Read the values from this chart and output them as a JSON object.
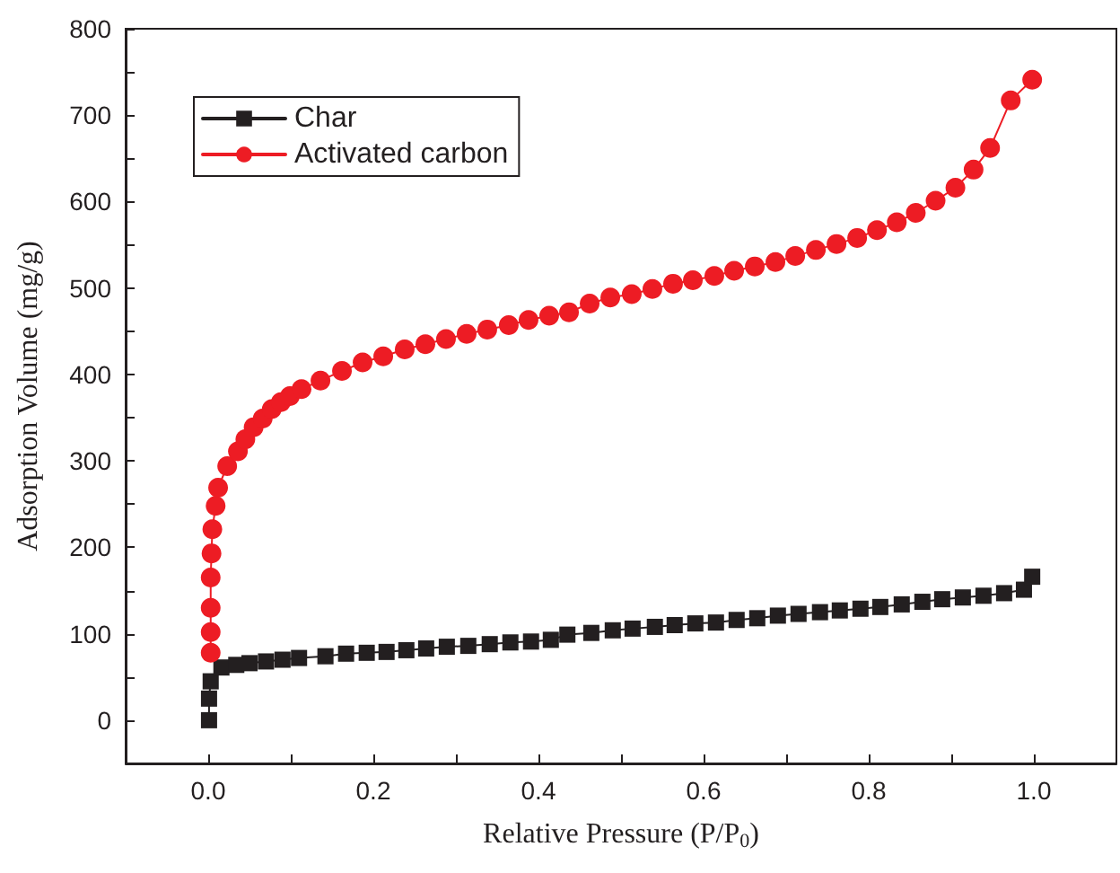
{
  "chart_data": {
    "type": "line",
    "xlabel": "Relative Pressure (P/P$_{0}$)",
    "ylabel": "Adsorption Volume (mg/g)",
    "xlim": [
      -0.1,
      1.1
    ],
    "ylim": [
      -50,
      800
    ],
    "xticks": [
      {
        "value": 0,
        "label": "0.0"
      },
      {
        "value": 0.1,
        "label": null
      },
      {
        "value": 0.2,
        "label": "0.2"
      },
      {
        "value": 0.3,
        "label": null
      },
      {
        "value": 0.4,
        "label": "0.4"
      },
      {
        "value": 0.5,
        "label": null
      },
      {
        "value": 0.6,
        "label": "0.6"
      },
      {
        "value": 0.7,
        "label": null
      },
      {
        "value": 0.8,
        "label": "0.8"
      },
      {
        "value": 0.9,
        "label": null
      },
      {
        "value": 1,
        "label": "1.0"
      }
    ],
    "yticks": [
      0,
      {
        "value": 50,
        "label": null
      },
      100,
      {
        "value": 150,
        "label": null
      },
      200,
      {
        "value": 250,
        "label": null
      },
      300,
      {
        "value": 350,
        "label": null
      },
      400,
      {
        "value": 450,
        "label": null
      },
      500,
      {
        "value": 550,
        "label": null
      },
      600,
      {
        "value": 650,
        "label": null
      },
      700,
      {
        "value": 750,
        "label": null
      },
      800
    ],
    "grid": false,
    "legend": "top left",
    "line_style": "solid",
    "series": [
      {
        "name": "Char",
        "color": "#231f20",
        "marker": "square",
        "x": [
          0.001,
          0.001,
          0.003,
          0.016,
          0.034,
          0.05,
          0.07,
          0.09,
          0.11,
          0.142,
          0.167,
          0.192,
          0.216,
          0.24,
          0.264,
          0.289,
          0.315,
          0.341,
          0.366,
          0.391,
          0.415,
          0.435,
          0.464,
          0.49,
          0.514,
          0.541,
          0.565,
          0.59,
          0.615,
          0.64,
          0.665,
          0.69,
          0.715,
          0.741,
          0.765,
          0.79,
          0.814,
          0.84,
          0.865,
          0.889,
          0.914,
          0.939,
          0.964,
          0.988,
          0.998
        ],
        "values": [
          0,
          25,
          45,
          61,
          64,
          66,
          68,
          70,
          72,
          74,
          77,
          78,
          79,
          81,
          83,
          85,
          86,
          88,
          90,
          91,
          93,
          99,
          101,
          104,
          106,
          108,
          110,
          112,
          113,
          116,
          118,
          121,
          123,
          125,
          127,
          129,
          131,
          134,
          137,
          140,
          142,
          144,
          147,
          151,
          166
        ]
      },
      {
        "name": "Activated carbon",
        "color": "#ed1c24",
        "marker": "circle",
        "x": [
          0.003,
          0.003,
          0.003,
          0.003,
          0.004,
          0.005,
          0.009,
          0.012,
          0.023,
          0.036,
          0.045,
          0.055,
          0.066,
          0.077,
          0.088,
          0.099,
          0.113,
          0.136,
          0.162,
          0.187,
          0.212,
          0.238,
          0.263,
          0.288,
          0.313,
          0.338,
          0.364,
          0.388,
          0.413,
          0.437,
          0.462,
          0.487,
          0.513,
          0.538,
          0.563,
          0.587,
          0.613,
          0.637,
          0.662,
          0.687,
          0.711,
          0.736,
          0.761,
          0.786,
          0.81,
          0.834,
          0.857,
          0.881,
          0.905,
          0.927,
          0.947,
          0.972,
          0.998
        ],
        "values": [
          78,
          102,
          130,
          165,
          193,
          221,
          248,
          269,
          294,
          311,
          325,
          339,
          349,
          360,
          368,
          375,
          383,
          393,
          404,
          414,
          421,
          429,
          435,
          441,
          447,
          452,
          457,
          463,
          468,
          472,
          482,
          489,
          493,
          499,
          505,
          509,
          514,
          520,
          525,
          530,
          537,
          544,
          551,
          558,
          567,
          576,
          587,
          601,
          616,
          637,
          662,
          717,
          741
        ]
      }
    ]
  }
}
